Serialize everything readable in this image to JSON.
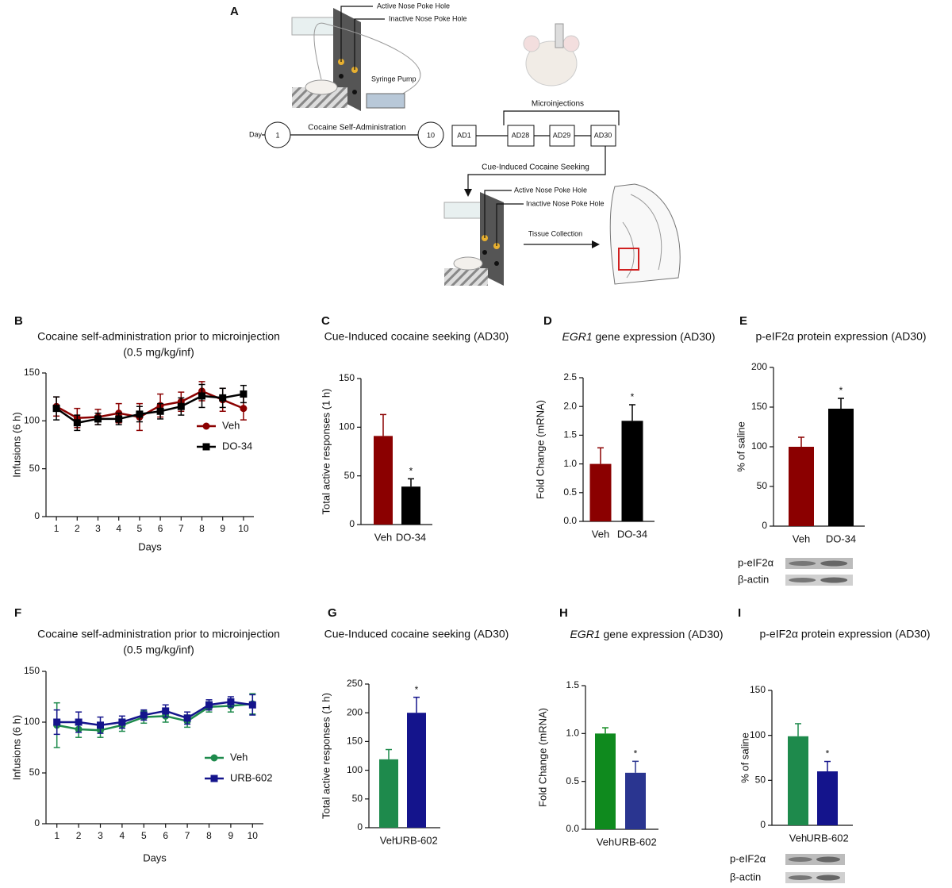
{
  "diagram": {
    "panel": "A",
    "active_hole_1": "Active Nose Poke Hole",
    "inactive_hole_1": "Inactive Nose Poke Hole",
    "pump": "Syringe Pump",
    "day": "Day",
    "day_start": 1,
    "day_end": 10,
    "self_admin": "Cocaine Self-Administration",
    "ad1": "AD1",
    "ad28": "AD28",
    "ad29": "AD29",
    "ad30": "AD30",
    "microinjections": "Microinjections",
    "seeking": "Cue-Induced Cocaine Seeking",
    "active_hole_2": "Active Nose Poke Hole",
    "inactive_hole_2": "Inactive Nose Poke Hole",
    "tissue": "Tissue Collection"
  },
  "chart_data": [
    {
      "type": "line",
      "panel": "B",
      "title": "Cocaine self-administration prior to microinjection",
      "subtitle": "(0.5 mg/kg/inf)",
      "y_label": "Infusions (6 h)",
      "x_label": "Days",
      "x": [
        1,
        2,
        3,
        4,
        5,
        6,
        7,
        8,
        9,
        10
      ],
      "xlim": [
        0.5,
        10.5
      ],
      "xticks": [
        1,
        2,
        3,
        4,
        5,
        6,
        7,
        8,
        9,
        10
      ],
      "ylim": [
        0,
        150
      ],
      "yticks": [
        0,
        50,
        100,
        150
      ],
      "series": [
        {
          "name": "Veh",
          "color": "#8b0000",
          "marker": "circle",
          "values": [
            115,
            103,
            104,
            108,
            104,
            116,
            120,
            131,
            122,
            113
          ],
          "errors": [
            10,
            10,
            8,
            10,
            14,
            12,
            10,
            10,
            12,
            12
          ]
        },
        {
          "name": "DO-34",
          "color": "#000000",
          "marker": "square",
          "values": [
            113,
            98,
            102,
            102,
            107,
            110,
            115,
            126,
            124,
            128
          ],
          "errors": [
            12,
            8,
            6,
            6,
            8,
            8,
            9,
            12,
            10,
            9
          ]
        }
      ]
    },
    {
      "type": "bar",
      "panel": "C",
      "title": "Cue-Induced cocaine seeking (AD30)",
      "y_label": "Total active responses (1 h)",
      "categories": [
        "Veh",
        "DO-34"
      ],
      "values": [
        91,
        39
      ],
      "errors": [
        22,
        8
      ],
      "colors": [
        "#8b0000",
        "#000000"
      ],
      "ylim": [
        0,
        150
      ],
      "yticks": [
        0,
        50,
        100,
        150
      ],
      "annotation": "*",
      "annotation_category": "DO-34"
    },
    {
      "type": "bar",
      "panel": "D",
      "title_gene": "EGR1",
      "title": " gene expression (AD30)",
      "y_label": "Fold Change (mRNA)",
      "categories": [
        "Veh",
        "DO-34"
      ],
      "values": [
        1.0,
        1.75
      ],
      "errors": [
        0.28,
        0.28
      ],
      "colors": [
        "#8b0000",
        "#000000"
      ],
      "ylim": [
        0,
        2.5
      ],
      "yticks": [
        {
          "value": 0,
          "label": "0.0"
        },
        0.5,
        {
          "value": 1,
          "label": "1.0"
        },
        1.5,
        {
          "value": 2,
          "label": "2.0"
        },
        2.5
      ],
      "annotation": "*",
      "annotation_category": "DO-34"
    },
    {
      "type": "bar",
      "panel": "E",
      "title": "p-eIF2α protein expression (AD30)",
      "y_label": "% of saline",
      "categories": [
        "Veh",
        "DO-34"
      ],
      "values": [
        100,
        148
      ],
      "errors": [
        12,
        13
      ],
      "colors": [
        "#8b0000",
        "#000000"
      ],
      "ylim": [
        0,
        200
      ],
      "yticks": [
        0,
        50,
        100,
        150,
        200
      ],
      "annotation": "*",
      "annotation_category": "DO-34",
      "blot_labels": [
        "p-eIF2α",
        "β-actin"
      ]
    },
    {
      "type": "line",
      "panel": "F",
      "title": "Cocaine self-administration prior to microinjection",
      "subtitle": "(0.5 mg/kg/inf)",
      "y_label": "Infusions (6 h)",
      "x_label": "Days",
      "x": [
        1,
        2,
        3,
        4,
        5,
        6,
        7,
        8,
        9,
        10
      ],
      "xlim": [
        0.5,
        10.5
      ],
      "xticks": [
        1,
        2,
        3,
        4,
        5,
        6,
        7,
        8,
        9,
        10
      ],
      "ylim": [
        0,
        150
      ],
      "yticks": [
        0,
        50,
        100,
        150
      ],
      "series": [
        {
          "name": "Veh",
          "color": "#1e8a4c",
          "marker": "circle",
          "values": [
            97,
            93,
            92,
            97,
            105,
            106,
            101,
            115,
            116,
            118
          ],
          "errors": [
            22,
            8,
            7,
            6,
            6,
            6,
            6,
            5,
            6,
            10
          ]
        },
        {
          "name": "URB-602",
          "color": "#14148c",
          "marker": "square",
          "values": [
            100,
            100,
            97,
            100,
            107,
            111,
            104,
            117,
            120,
            117
          ],
          "errors": [
            12,
            10,
            8,
            6,
            5,
            6,
            6,
            5,
            5,
            10
          ]
        }
      ]
    },
    {
      "type": "bar",
      "panel": "G",
      "title": "Cue-Induced cocaine seeking (AD30)",
      "y_label": "Total active responses (1 h)",
      "categories": [
        "Veh",
        "URB-602"
      ],
      "values": [
        119,
        200
      ],
      "errors": [
        17,
        27
      ],
      "colors": [
        "#1e8a4c",
        "#14148c"
      ],
      "ylim": [
        0,
        250
      ],
      "yticks": [
        0,
        50,
        100,
        150,
        200,
        250
      ],
      "annotation": "*",
      "annotation_category": "URB-602"
    },
    {
      "type": "bar",
      "panel": "H",
      "title_gene": "EGR1",
      "title": " gene expression (AD30)",
      "y_label": "Fold Change (mRNA)",
      "categories": [
        "Veh",
        "URB-602"
      ],
      "values": [
        1.0,
        0.59
      ],
      "errors": [
        0.06,
        0.12
      ],
      "colors": [
        "#0f8a1e",
        "#2a3590"
      ],
      "ylim": [
        0,
        1.5
      ],
      "yticks": [
        {
          "value": 0,
          "label": "0.0"
        },
        0.5,
        {
          "value": 1,
          "label": "1.0"
        },
        1.5
      ],
      "annotation": "*",
      "annotation_category": "URB-602"
    },
    {
      "type": "bar",
      "panel": "I",
      "title": "p-eIF2α protein expression (AD30)",
      "y_label": "% of saline",
      "categories": [
        "Veh",
        "URB-602"
      ],
      "values": [
        99,
        60
      ],
      "errors": [
        14,
        11
      ],
      "colors": [
        "#1e8a4c",
        "#14148c"
      ],
      "ylim": [
        0,
        150
      ],
      "yticks": [
        0,
        50,
        100,
        150
      ],
      "annotation": "*",
      "annotation_category": "URB-602",
      "blot_labels": [
        "p-eIF2α",
        "β-actin"
      ]
    }
  ]
}
